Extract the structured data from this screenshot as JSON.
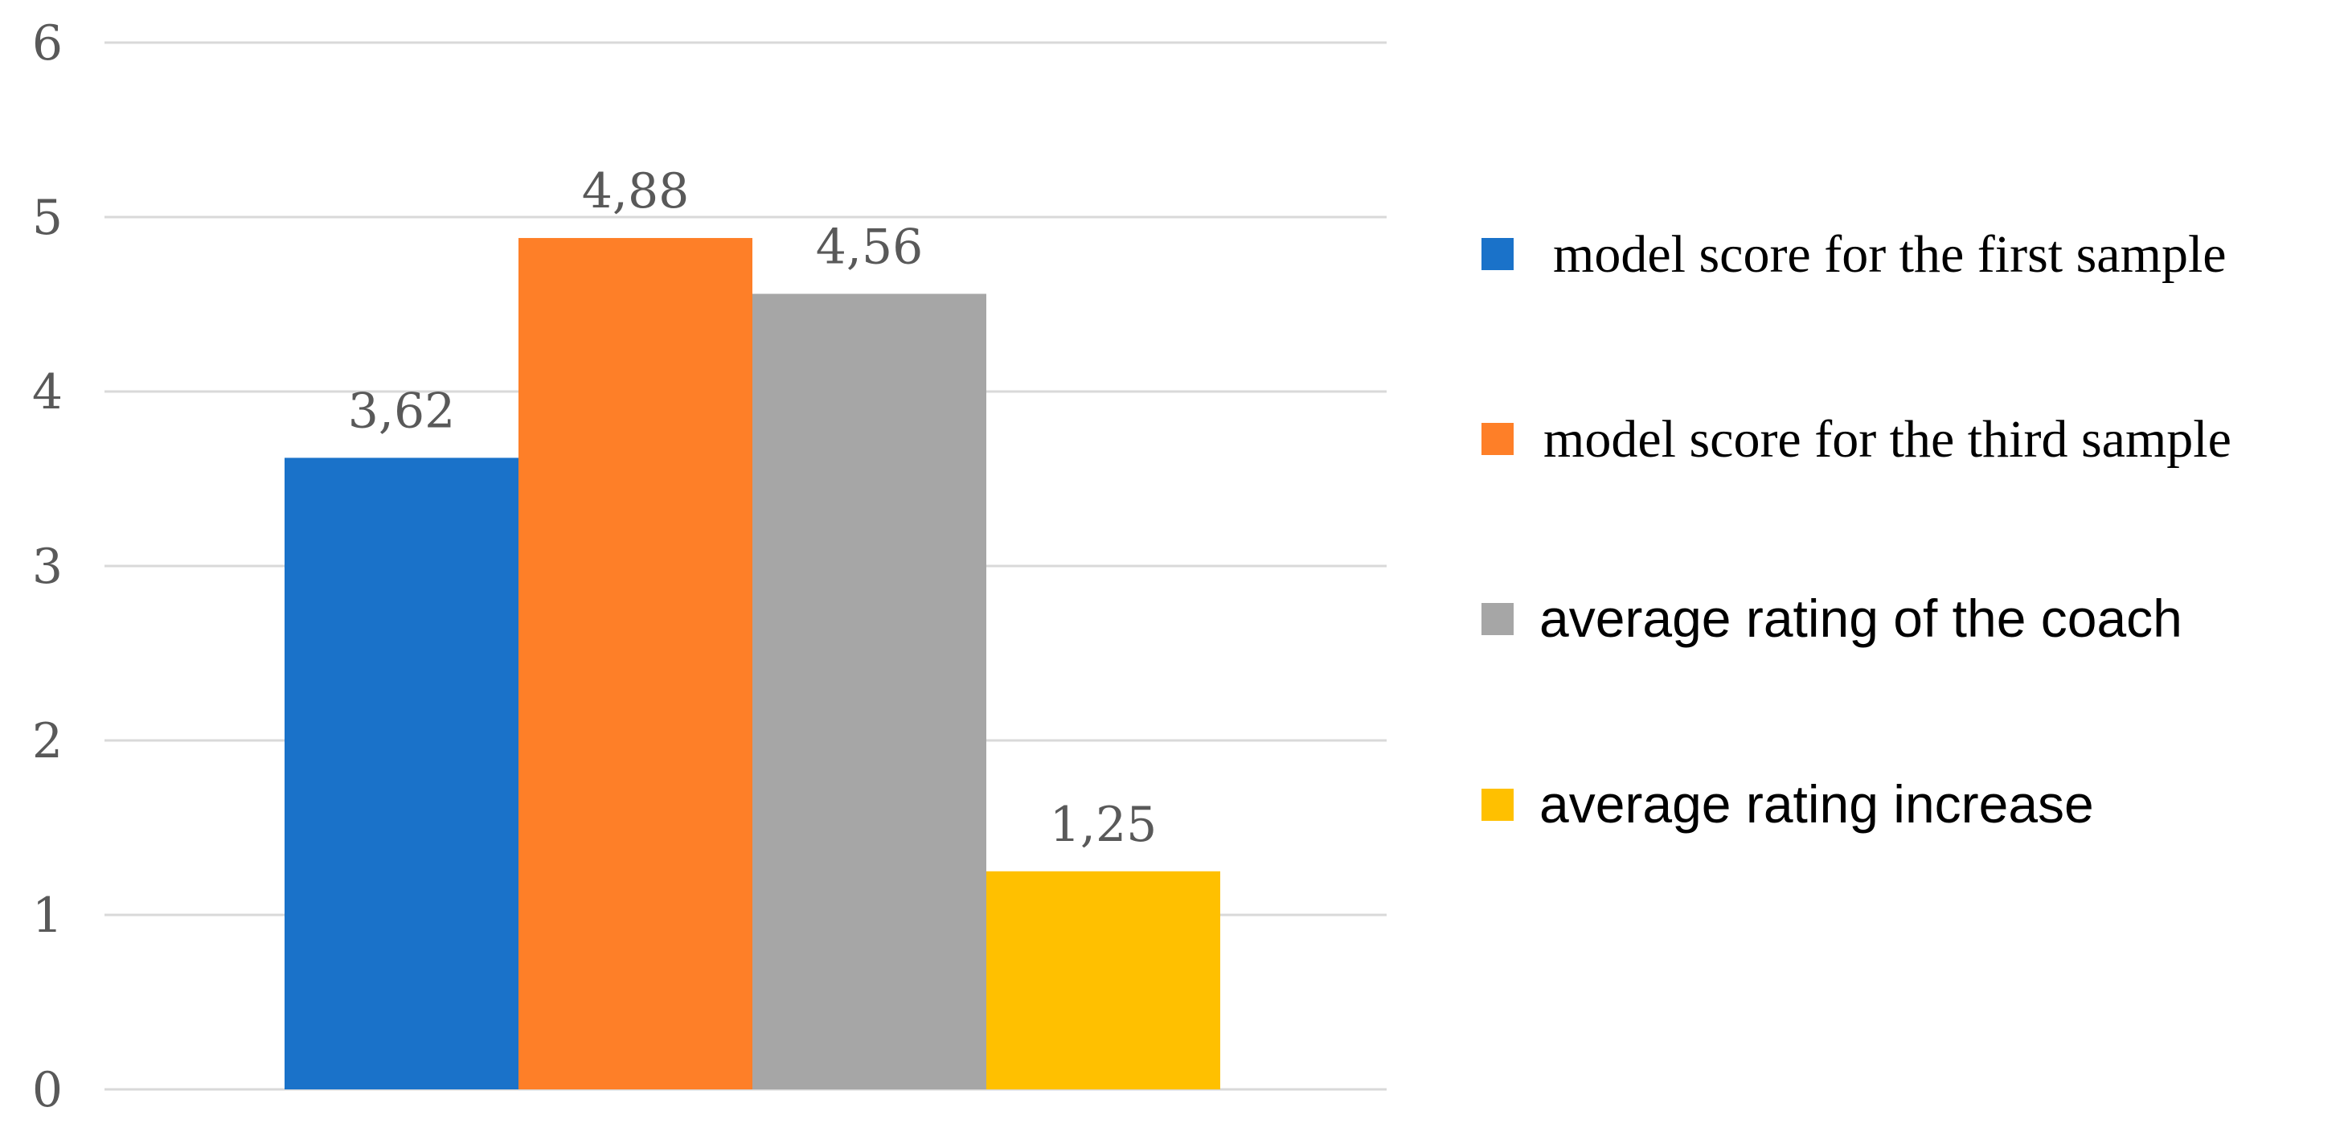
{
  "chart_data": {
    "type": "bar",
    "title": "",
    "xlabel": "",
    "ylabel": "",
    "ylim": [
      0,
      6
    ],
    "yticks": [
      "0",
      "1",
      "2",
      "3",
      "4",
      "5",
      "6"
    ],
    "grid": true,
    "legend_position": "right",
    "series": [
      {
        "name": "model score for the first sample",
        "value": 3.62,
        "label": "3,62",
        "color": "#1a72c9"
      },
      {
        "name": "model score for the third sample",
        "value": 4.88,
        "label": "4,88",
        "color": "#fe7f28"
      },
      {
        "name": "average rating of the coach",
        "value": 4.56,
        "label": "4,56",
        "color": "#a6a6a6"
      },
      {
        "name": "average rating increase",
        "value": 1.25,
        "label": "1,25",
        "color": "#ffc000"
      }
    ]
  }
}
